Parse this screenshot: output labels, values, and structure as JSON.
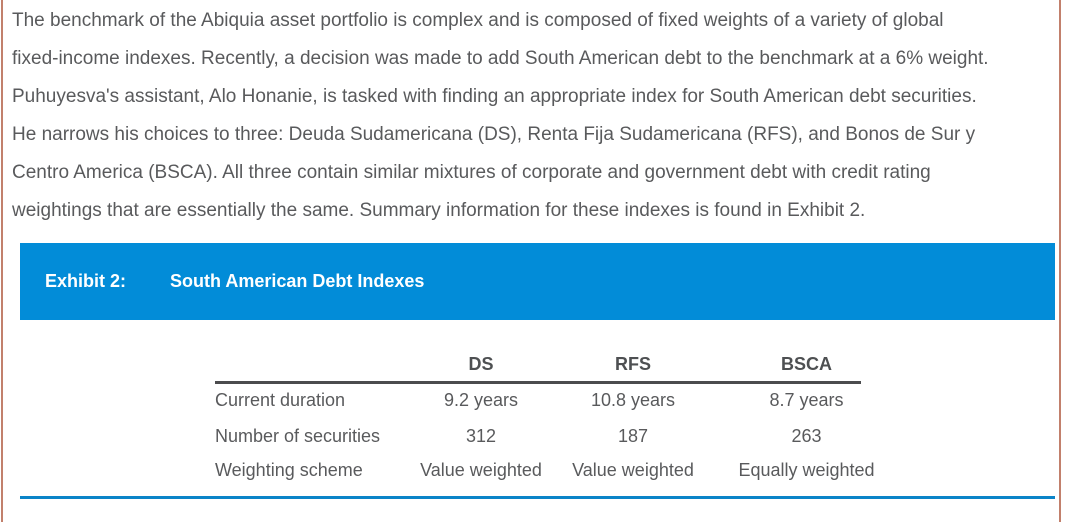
{
  "paragraph": {
    "lines": [
      "The benchmark of the Abiquia asset portfolio is complex and is composed of fixed weights of a variety of global",
      "fixed-income indexes. Recently, a decision was made to add South American debt to the benchmark at a 6% weight.",
      "Puhuyesva's assistant, Alo Honanie, is tasked with finding an appropriate index for South American debt securities.",
      "He narrows his choices to three: Deuda Sudamericana (DS), Renta Fija Sudamericana (RFS), and Bonos de Sur y",
      "Centro America (BSCA). All three contain similar mixtures of corporate and government debt with credit rating",
      "weightings that are essentially the same. Summary information for these indexes is found in Exhibit 2."
    ]
  },
  "exhibit": {
    "label": "Exhibit 2:",
    "title": "South American Debt Indexes"
  },
  "table": {
    "columns": [
      "DS",
      "RFS",
      "BSCA"
    ],
    "rows": [
      {
        "label": "Current duration",
        "values": [
          "9.2 years",
          "10.8 years",
          "8.7 years"
        ]
      },
      {
        "label": "Number of securities",
        "values": [
          "312",
          "187",
          "263"
        ]
      },
      {
        "label": "Weighting scheme",
        "values": [
          "Value weighted",
          "Value weighted",
          "Equally weighted"
        ]
      }
    ]
  },
  "colors": {
    "accent_blue": "#028cd8",
    "divider_blue": "#0b84c8",
    "table_rule_dark": "#4b4c4e",
    "page_border_salmon": "#c2806c",
    "body_text_gray": "#595a5c"
  }
}
